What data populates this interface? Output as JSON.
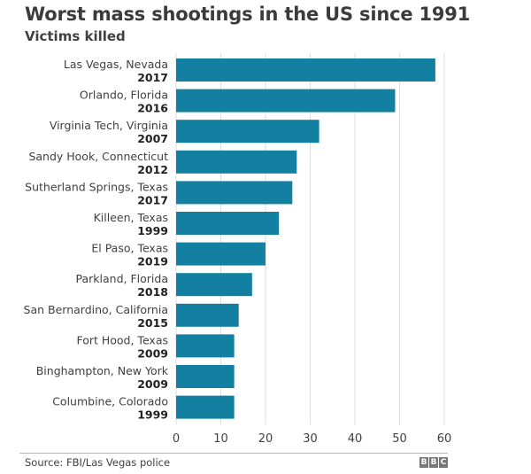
{
  "chart_data": {
    "type": "bar",
    "orientation": "horizontal",
    "title": "Worst mass shootings in the US since 1991",
    "subtitle": "Victims killed",
    "categories": [
      {
        "place": "Las Vegas, Nevada",
        "year": "2017"
      },
      {
        "place": "Orlando, Florida",
        "year": "2016"
      },
      {
        "place": "Virginia Tech, Virginia",
        "year": "2007"
      },
      {
        "place": "Sandy Hook, Connecticut",
        "year": "2012"
      },
      {
        "place": "Sutherland Springs, Texas",
        "year": "2017"
      },
      {
        "place": "Killeen, Texas",
        "year": "1999"
      },
      {
        "place": "El Paso, Texas",
        "year": "2019"
      },
      {
        "place": "Parkland, Florida",
        "year": "2018"
      },
      {
        "place": "San Bernardino, California",
        "year": "2015"
      },
      {
        "place": "Fort Hood, Texas",
        "year": "2009"
      },
      {
        "place": "Binghampton, New York",
        "year": "2009"
      },
      {
        "place": "Columbine, Colorado",
        "year": "1999"
      }
    ],
    "values": [
      58,
      49,
      32,
      27,
      26,
      23,
      20,
      17,
      14,
      13,
      13,
      13
    ],
    "xlabel": "",
    "ylabel": "",
    "xlim": [
      0,
      60
    ],
    "xticks": [
      0,
      10,
      20,
      30,
      40,
      50,
      60
    ],
    "grid": true,
    "bar_color": "#1380a1",
    "grid_color": "#dddddd"
  },
  "footer": {
    "source": "Source: FBI/Las Vegas police",
    "logo_letters": [
      "B",
      "B",
      "C"
    ]
  }
}
